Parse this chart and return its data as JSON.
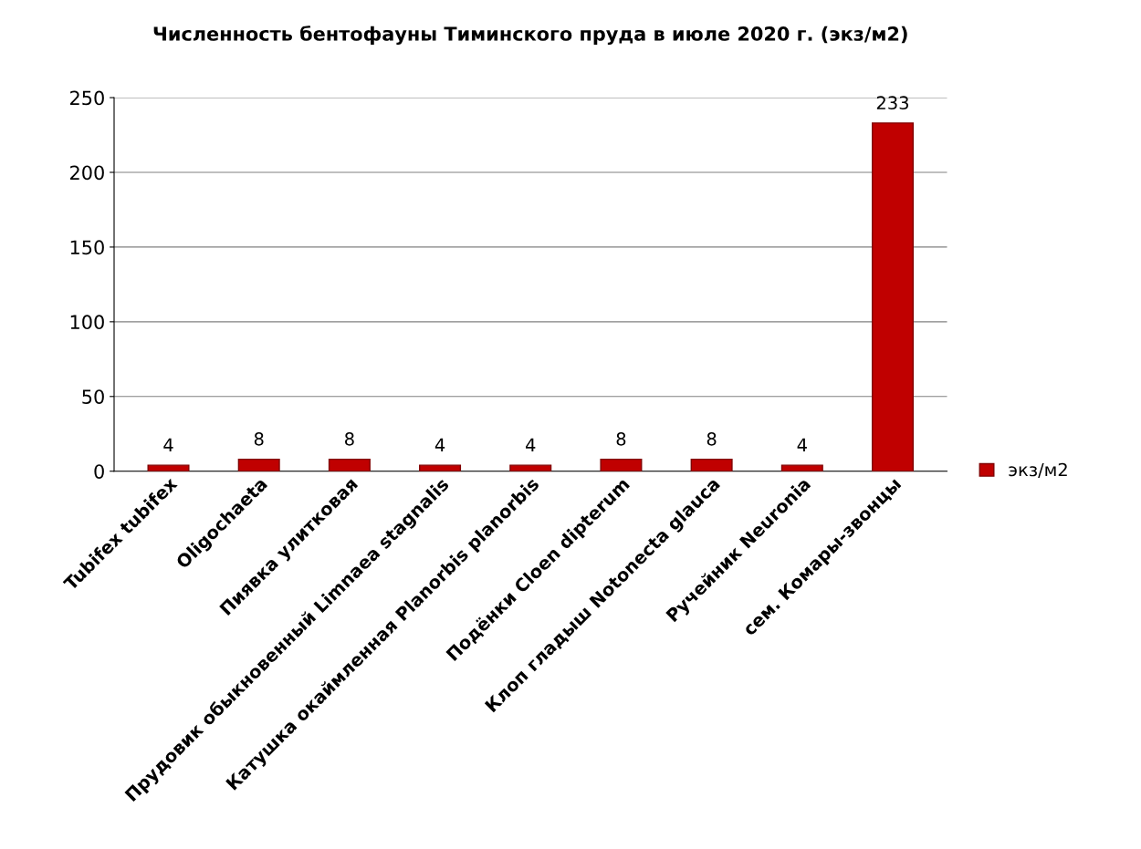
{
  "chart_data": {
    "type": "bar",
    "title": "Численность бентофауны Тиминского пруда в июле 2020 г. (экз/м2)",
    "categories": [
      "Tubifex tubifex",
      "Oligochaeta",
      "Пиявка улитковая",
      "Прудовик обыкновенный Limnaea stagnalis",
      "Катушка окаймленная Planorbis planorbis",
      "Подёнки Cloen dipterum",
      "Клоп гладыш Notonecta glauca",
      "Ручейник Neuronia",
      "сем. Комары-звонцы"
    ],
    "series": [
      {
        "name": "экз/м2",
        "color": "#c00000",
        "values": [
          4,
          8,
          8,
          4,
          4,
          8,
          8,
          4,
          233
        ]
      }
    ],
    "ylim": [
      0,
      250
    ],
    "yticks": [
      0,
      50,
      100,
      150,
      200,
      250
    ],
    "grid": "y",
    "legend": "right",
    "data_labels": true
  }
}
